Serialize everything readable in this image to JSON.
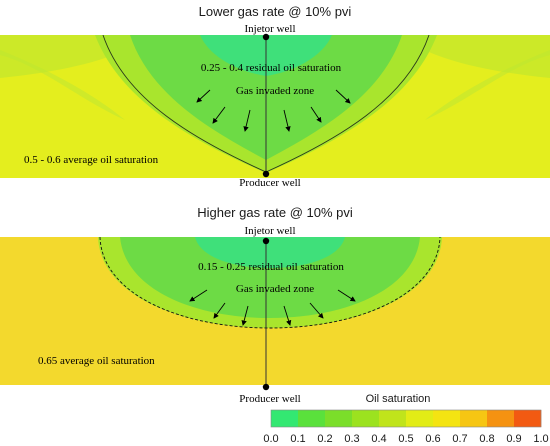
{
  "top_panel": {
    "title": "Lower gas rate @ 10% pvi",
    "injector_label": "Injetor well",
    "residual_label": "0.25 - 0.4 residual oil saturation",
    "gas_zone_label": "Gas invaded zone",
    "average_label": "0.5 - 0.6 average oil saturation",
    "producer_label": "Producer well"
  },
  "bottom_panel": {
    "title": "Higher gas rate @ 10% pvi",
    "injector_label": "Injetor well",
    "residual_label": "0.15 - 0.25 residual oil saturation",
    "gas_zone_label": "Gas invaded zone",
    "average_label": "0.65 average oil saturation",
    "producer_label": "Producer well"
  },
  "colorbar": {
    "title": "Oil saturation",
    "ticks": [
      "0.0",
      "0.1",
      "0.2",
      "0.3",
      "0.4",
      "0.5",
      "0.6",
      "0.7",
      "0.8",
      "0.9",
      "1.0"
    ],
    "colors": [
      "#33e872",
      "#5ae13c",
      "#7bde2a",
      "#9ce21f",
      "#c0e41b",
      "#e2ec16",
      "#f4e412",
      "#f6c613",
      "#f59211",
      "#f25a12",
      "#ee1a14"
    ]
  },
  "colors": {
    "top_background": "#e4ee1e",
    "bottom_background": "#f3d92d",
    "swept_outer": "#a9e52d",
    "swept_mid": "#6ddb45",
    "swept_inner": "#3fe07a"
  }
}
